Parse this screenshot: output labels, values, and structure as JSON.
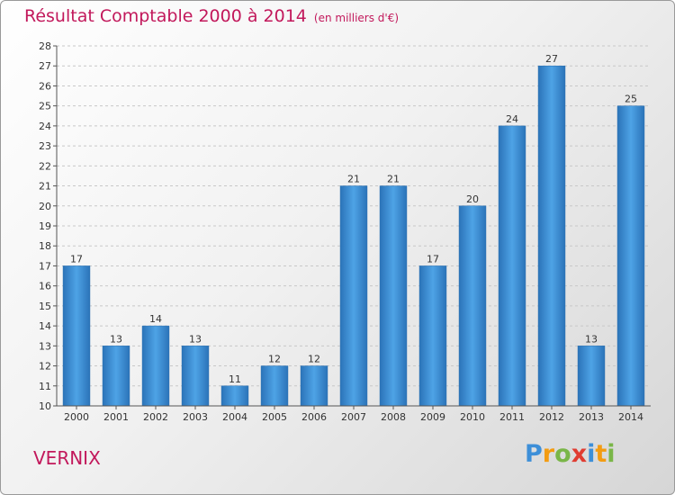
{
  "chart_data": {
    "type": "bar",
    "title": "Résultat Comptable 2000 à 2014",
    "subtitle": "(en milliers d'€)",
    "categories": [
      "2000",
      "2001",
      "2002",
      "2003",
      "2004",
      "2005",
      "2006",
      "2007",
      "2008",
      "2009",
      "2010",
      "2011",
      "2012",
      "2013",
      "2014"
    ],
    "values": [
      17,
      13,
      14,
      13,
      11,
      12,
      12,
      21,
      21,
      17,
      20,
      24,
      27,
      13,
      25
    ],
    "ylim": [
      10,
      28
    ],
    "yticks": [
      10,
      11,
      12,
      13,
      14,
      15,
      16,
      17,
      18,
      19,
      20,
      21,
      22,
      23,
      24,
      25,
      26,
      27,
      28
    ],
    "xlabel": "",
    "ylabel": "",
    "grid": true,
    "bar_color": "#3d8fd8",
    "title_color": "#c2185b"
  },
  "place_name": "VERNIX",
  "logo": {
    "text": "Proxiti",
    "letters": [
      {
        "char": "P",
        "color": "#3d8fd8"
      },
      {
        "char": "r",
        "color": "#f39c12"
      },
      {
        "char": "o",
        "color": "#7ab648"
      },
      {
        "char": "x",
        "color": "#e03c31"
      },
      {
        "char": "i",
        "color": "#3d8fd8"
      },
      {
        "char": "t",
        "color": "#f39c12"
      },
      {
        "char": "i",
        "color": "#7ab648"
      }
    ]
  }
}
